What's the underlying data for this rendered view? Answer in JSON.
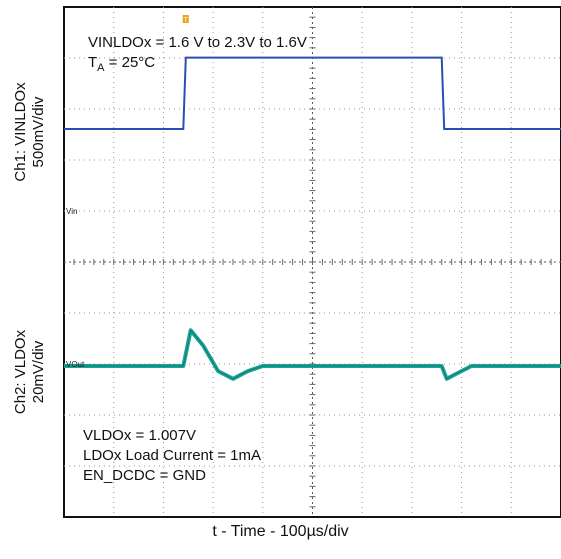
{
  "chart_data": {
    "type": "line",
    "title": "",
    "xlabel": "t - Time - 100µs/div",
    "xlim_divisions": [
      0,
      10
    ],
    "grid": true,
    "channels": [
      {
        "name": "Ch1: VINLDOx",
        "ylabel_line1": "Ch1: VINLDOx",
        "ylabel_line2": "500mV/div",
        "marker": "Vin",
        "color": "#2a4fb0"
      },
      {
        "name": "Ch2: VLDOx",
        "ylabel_line1": "Ch2: VLDOx",
        "ylabel_line2": "20mV/div",
        "marker": "VOut",
        "color": "#1aa59a"
      }
    ],
    "series": [
      {
        "name": "Ch1: VINLDOx",
        "unit": "V",
        "x": [
          0,
          2.4,
          2.45,
          7.6,
          7.65,
          10
        ],
        "values": [
          1.6,
          1.6,
          2.3,
          2.3,
          1.6,
          1.6
        ]
      },
      {
        "name": "Ch2: VLDOx",
        "unit": "mV relative to 1.007V",
        "x": [
          0,
          2.4,
          2.55,
          2.8,
          3.1,
          3.4,
          3.7,
          4.0,
          4.5,
          7.6,
          7.7,
          7.9,
          8.2,
          8.5,
          10
        ],
        "values": [
          0,
          0,
          14,
          8,
          -2,
          -5,
          -2,
          0,
          0,
          0,
          -5,
          -3,
          0,
          0,
          0
        ]
      }
    ],
    "annotations": {
      "top_line1": "VINLDOx = 1.6 V to 2.3V to 1.6V",
      "top_line2_prefix": "T",
      "top_line2_sub": "A",
      "top_line2_suffix": " = 25°C",
      "bottom_line1": "VLDOx = 1.007V",
      "bottom_line2": "LDOx Load Current = 1mA",
      "bottom_line3": "EN_DCDC = GND"
    },
    "trigger_marker": "T"
  },
  "colors": {
    "ch1": "#2a4fb0",
    "ch2": "#1aa59a",
    "grid": "#9a9a9a",
    "trigger": "#e8a21a"
  }
}
